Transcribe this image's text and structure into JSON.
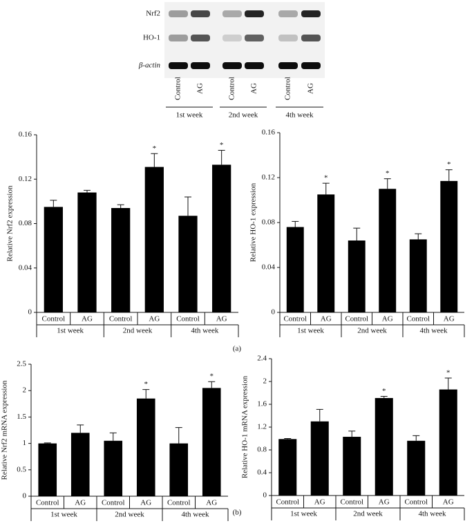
{
  "blot": {
    "rows": [
      "Nrf2",
      "HO-1",
      "β-actin"
    ],
    "lanes": [
      "Control",
      "AG",
      "Control",
      "AG",
      "Control",
      "AG"
    ],
    "groups": [
      "1st week",
      "2nd week",
      "4th week"
    ]
  },
  "panel_labels": [
    "(a)",
    "(b)"
  ],
  "chart_data": [
    {
      "type": "bar",
      "y_label": "Relative Nrf2 expression",
      "color": "#000000",
      "categories": [
        "Control",
        "AG",
        "Control",
        "AG",
        "Control",
        "AG"
      ],
      "groups": [
        "1st week",
        "2nd week",
        "4th week"
      ],
      "values": [
        0.095,
        0.108,
        0.094,
        0.131,
        0.087,
        0.133
      ],
      "errors": [
        0.006,
        0.002,
        0.003,
        0.012,
        0.017,
        0.013
      ],
      "annotations": [
        {
          "index": 3,
          "text": "*"
        },
        {
          "index": 5,
          "text": "*"
        }
      ],
      "ylim": [
        0,
        0.16
      ],
      "yticks": [
        0,
        0.04,
        0.08,
        0.12,
        0.16
      ]
    },
    {
      "type": "bar",
      "y_label": "Relative HO-1 expression",
      "color": "#000000",
      "categories": [
        "Control",
        "AG",
        "Control",
        "AG",
        "Control",
        "AG"
      ],
      "groups": [
        "1st week",
        "2nd week",
        "4th week"
      ],
      "values": [
        0.076,
        0.105,
        0.064,
        0.11,
        0.065,
        0.117
      ],
      "errors": [
        0.005,
        0.01,
        0.011,
        0.009,
        0.005,
        0.01
      ],
      "annotations": [
        {
          "index": 1,
          "text": "*"
        },
        {
          "index": 3,
          "text": "*"
        },
        {
          "index": 5,
          "text": "*"
        }
      ],
      "ylim": [
        0,
        0.16
      ],
      "yticks": [
        0,
        0.04,
        0.08,
        0.12,
        0.16
      ]
    },
    {
      "type": "bar",
      "y_label": "Relative Nrf2 mRNA expression",
      "color": "#000000",
      "categories": [
        "Control",
        "AG",
        "Control",
        "AG",
        "Control",
        "AG"
      ],
      "groups": [
        "1st week",
        "2nd week",
        "4th week"
      ],
      "values": [
        1.0,
        1.2,
        1.05,
        1.85,
        1.0,
        2.05
      ],
      "errors": [
        0.01,
        0.15,
        0.15,
        0.17,
        0.3,
        0.12
      ],
      "annotations": [
        {
          "index": 3,
          "text": "*"
        },
        {
          "index": 5,
          "text": "*"
        }
      ],
      "ylim": [
        0,
        2.5
      ],
      "yticks": [
        0,
        0.5,
        1,
        1.5,
        2,
        2.5
      ]
    },
    {
      "type": "bar",
      "y_label": "Relative HO-1 mRNA expression",
      "color": "#000000",
      "categories": [
        "Control",
        "AG",
        "Control",
        "AG",
        "Control",
        "AG"
      ],
      "groups": [
        "1st week",
        "2nd week",
        "4th week"
      ],
      "values": [
        0.99,
        1.3,
        1.03,
        1.71,
        0.96,
        1.86
      ],
      "errors": [
        0.01,
        0.21,
        0.1,
        0.03,
        0.09,
        0.2
      ],
      "annotations": [
        {
          "index": 3,
          "text": "*"
        },
        {
          "index": 5,
          "text": "*"
        }
      ],
      "ylim": [
        0,
        2.4
      ],
      "yticks": [
        0,
        0.4,
        0.8,
        1.2,
        1.6,
        2,
        2.4
      ]
    }
  ]
}
